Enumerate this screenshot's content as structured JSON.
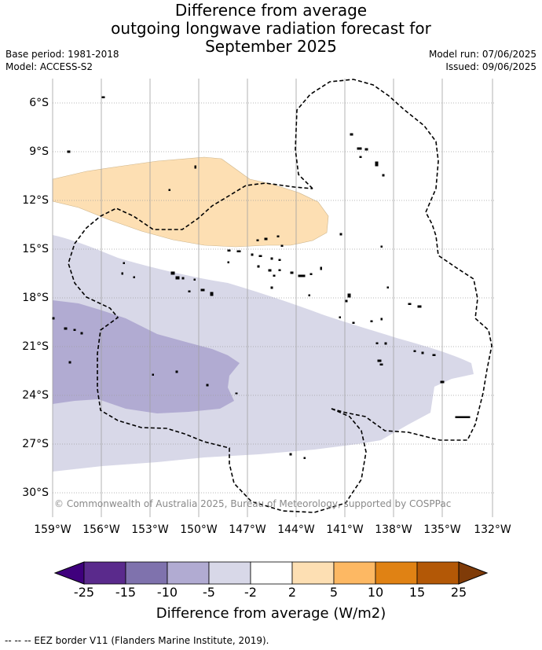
{
  "title": {
    "line1": "Difference from average",
    "line2": "outgoing longwave radiation forecast for",
    "line3": "September 2025"
  },
  "meta": {
    "base_period": "Base period: 1981-2018",
    "model": "Model: ACCESS-S2",
    "model_run": "Model run: 07/06/2025",
    "issued": "Issued: 09/06/2025"
  },
  "map": {
    "lat_labels": [
      "6°S",
      "9°S",
      "12°S",
      "15°S",
      "18°S",
      "21°S",
      "24°S",
      "27°S",
      "30°S"
    ],
    "lon_labels": [
      "159°W",
      "156°W",
      "153°W",
      "150°W",
      "147°W",
      "144°W",
      "141°W",
      "138°W",
      "135°W",
      "132°W"
    ],
    "copyright": "© Commonwealth of Australia 2025, Bureau of Meteorology, supported by COSPPac",
    "anomaly_colors": {
      "minus5_minus2": "#d8d8e8",
      "minus10_minus5": "#b1abd2",
      "plus2_plus5": "#fddfb3"
    }
  },
  "colorbar": {
    "ticks": [
      "-25",
      "-15",
      "-10",
      "-5",
      "-2",
      "2",
      "5",
      "10",
      "15",
      "25"
    ],
    "colors": [
      "#3f007d",
      "#5a2a8c",
      "#7f72ad",
      "#b1abd2",
      "#d8d8e8",
      "#ffffff",
      "#fddfb3",
      "#fdb863",
      "#e08214",
      "#b35806",
      "#7f3b08"
    ],
    "label": "Difference from average (W/m2)"
  },
  "footer": "--  --  -- EEZ border V11 (Flanders Marine Institute, 2019)."
}
